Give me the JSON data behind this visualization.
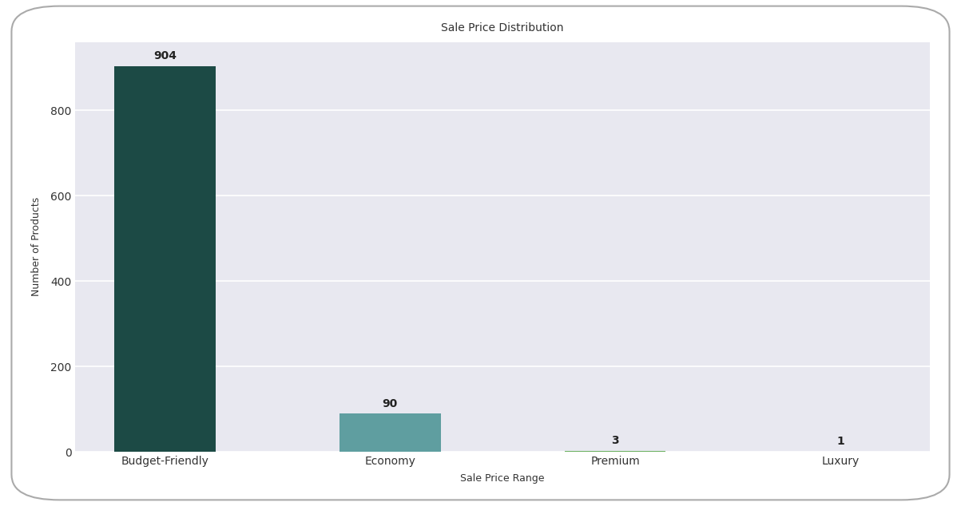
{
  "categories": [
    "Budget-Friendly",
    "Economy",
    "Premium",
    "Luxury"
  ],
  "values": [
    904,
    90,
    3,
    1
  ],
  "bar_colors": [
    "#1C4A45",
    "#5F9EA0",
    "#6AAF5E",
    "#A8C87A"
  ],
  "title": "Sale Price Distribution",
  "xlabel": "Sale Price Range",
  "ylabel": "Number of Products",
  "ylim": [
    0,
    960
  ],
  "yticks": [
    0,
    200,
    400,
    600,
    800
  ],
  "background_color": "#E8E8F0",
  "outer_background": "#FFFFFF",
  "title_fontsize": 10,
  "label_fontsize": 9,
  "tick_fontsize": 10,
  "annot_fontsize": 10
}
